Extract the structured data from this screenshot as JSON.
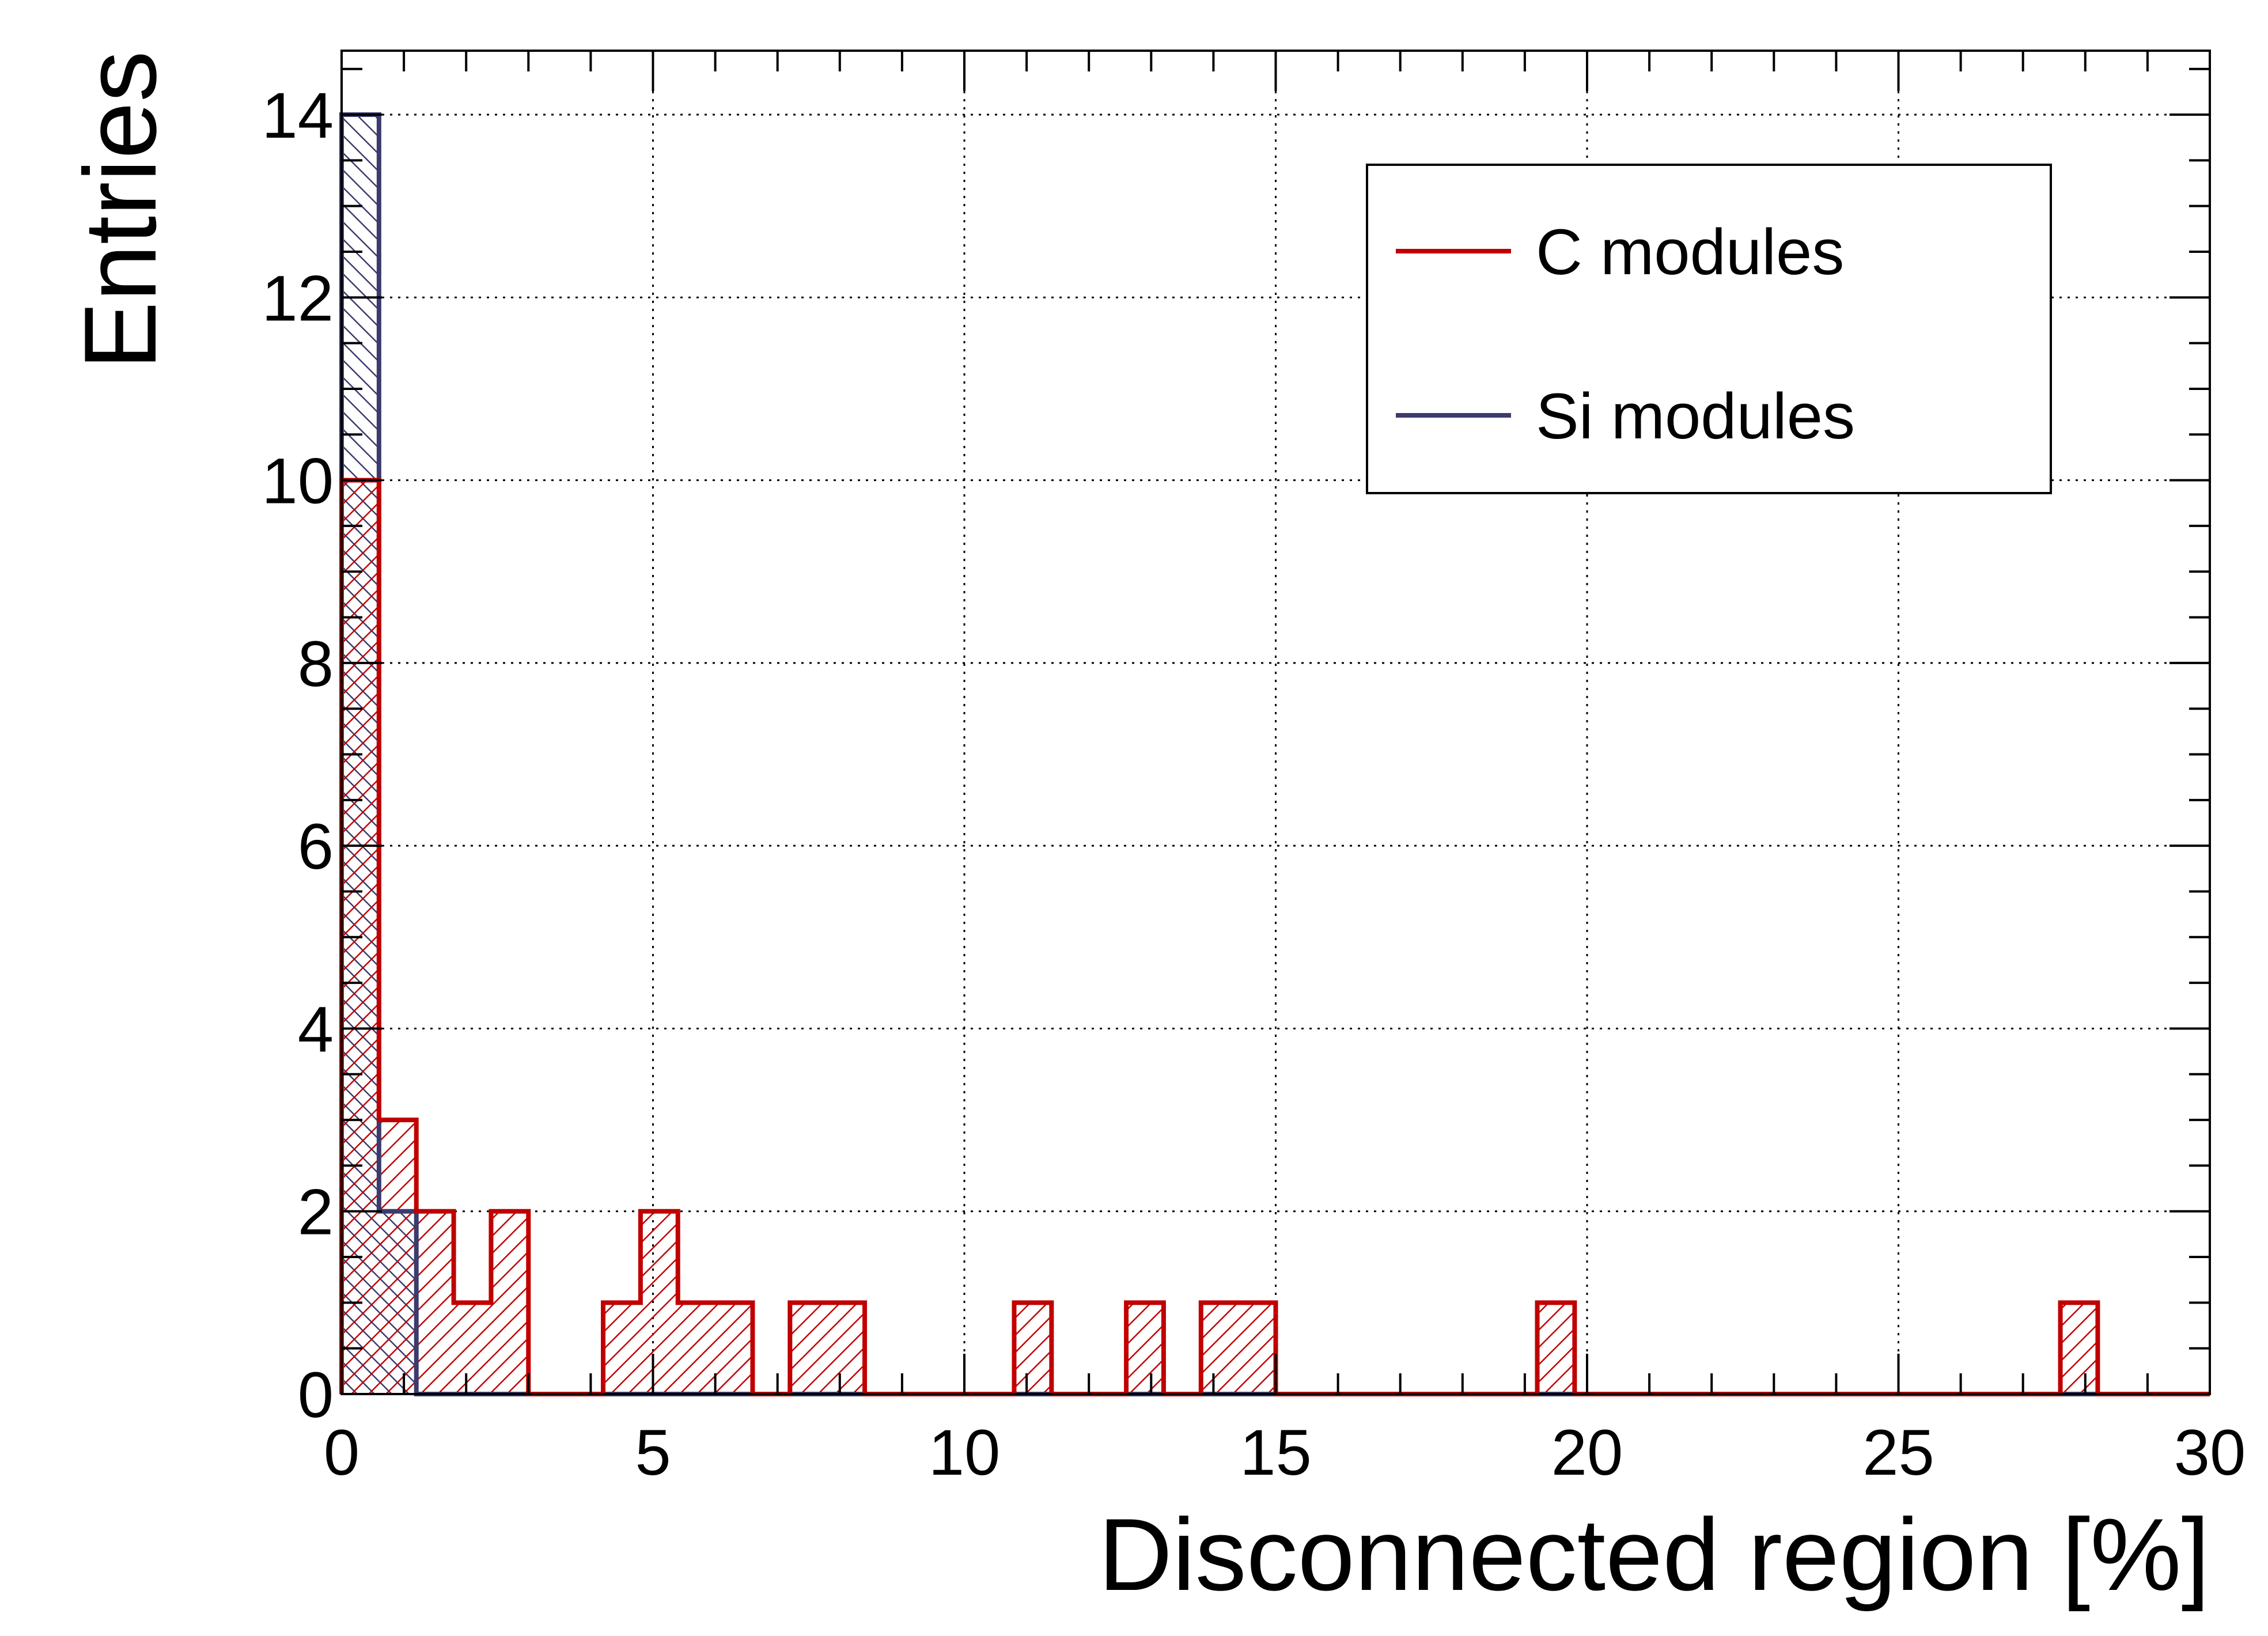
{
  "chart_data": {
    "type": "histogram",
    "title": "",
    "xlabel": "Disconnected region [%]",
    "ylabel": "Entries",
    "xlim": [
      0,
      30
    ],
    "ylim": [
      0,
      14.7
    ],
    "x_ticks": [
      "0",
      "5",
      "10",
      "15",
      "20",
      "25",
      "30"
    ],
    "y_ticks": [
      "0",
      "2",
      "4",
      "6",
      "8",
      "10",
      "12",
      "14"
    ],
    "grid": true,
    "grid_style": "dotted",
    "bin_width": 0.6,
    "bin_edges_start": 0,
    "legend_position": "top-right",
    "series": [
      {
        "name": "C modules",
        "color": "#c00000",
        "hatch": "diagonal",
        "values": [
          10,
          3,
          2,
          1,
          2,
          0,
          0,
          1,
          2,
          1,
          1,
          0,
          1,
          1,
          0,
          0,
          0,
          0,
          1,
          0,
          0,
          1,
          0,
          1,
          1,
          0,
          0,
          0,
          0,
          0,
          0,
          0,
          1,
          0,
          0,
          0,
          0,
          0,
          0,
          0,
          0,
          0,
          0,
          0,
          0,
          0,
          1,
          0,
          0,
          0
        ]
      },
      {
        "name": "Si modules",
        "color": "#3b3b6d",
        "hatch": "anti-diagonal",
        "values": [
          14,
          2,
          0,
          0,
          0,
          0,
          0,
          0,
          0,
          0,
          0,
          0,
          0,
          0,
          0,
          0,
          0,
          0,
          0,
          0,
          0,
          0,
          0,
          0,
          0,
          0,
          0,
          0,
          0,
          0,
          0,
          0,
          0,
          0,
          0,
          0,
          0,
          0,
          0,
          0,
          0,
          0,
          0,
          0,
          0,
          0,
          0,
          0,
          0,
          0
        ]
      }
    ]
  }
}
